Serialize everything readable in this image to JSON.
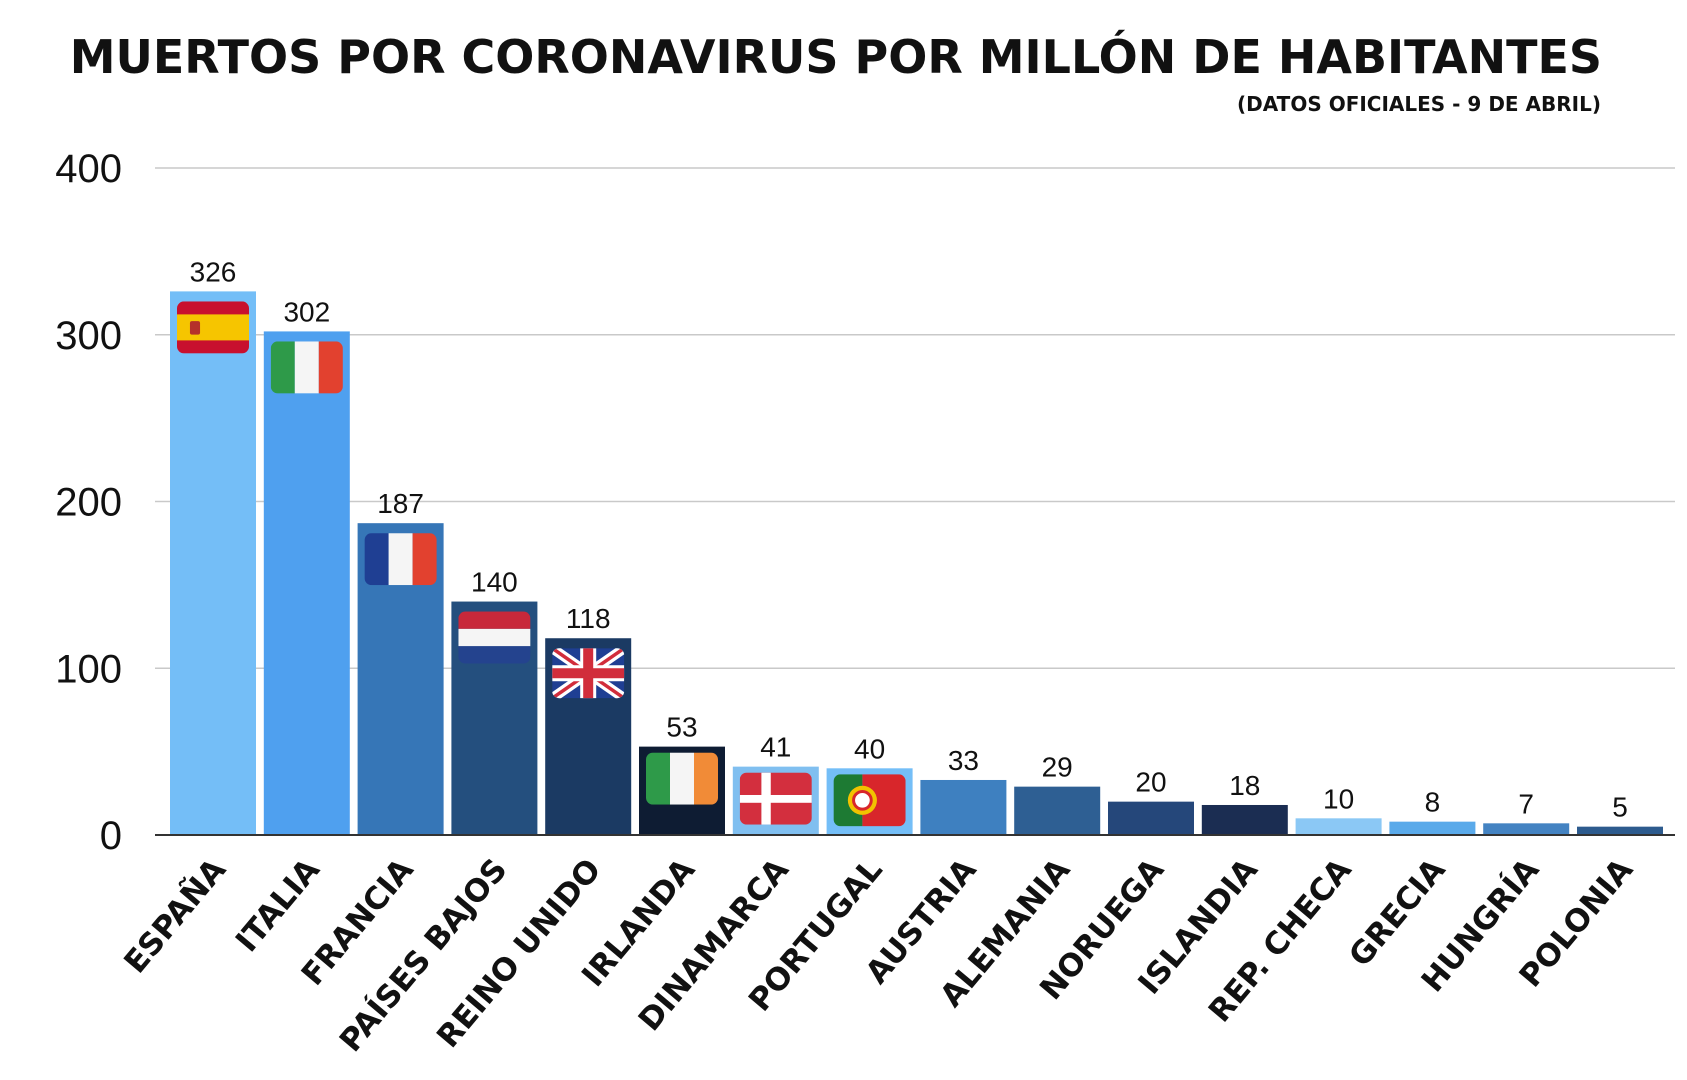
{
  "chart_data": {
    "type": "bar",
    "title": "MUERTOS POR CORONAVIRUS POR MILLÓN DE HABITANTES",
    "subtitle": "(DATOS OFICIALES - 9 DE ABRIL)",
    "xlabel": "",
    "ylabel": "",
    "ylim": [
      0,
      400
    ],
    "yticks": [
      0,
      100,
      200,
      300,
      400
    ],
    "grid": true,
    "legend": "none",
    "categories": [
      "ESPAÑA",
      "ITALIA",
      "FRANCIA",
      "PAÍSES BAJOS",
      "REINO UNIDO",
      "IRLANDA",
      "DINAMARCA",
      "PORTUGAL",
      "AUSTRIA",
      "ALEMANIA",
      "NORUEGA",
      "ISLANDIA",
      "REP. CHECA",
      "GRECIA",
      "HUNGRÍA",
      "POLONIA"
    ],
    "values": [
      326,
      302,
      187,
      140,
      118,
      53,
      41,
      40,
      33,
      29,
      20,
      18,
      10,
      8,
      7,
      5
    ],
    "value_labels": [
      "326",
      "302",
      "187",
      "140",
      "118",
      "53",
      "41",
      "40",
      "33",
      "29",
      "20",
      "18",
      "10",
      "8",
      "7",
      "5"
    ],
    "ytick_labels": [
      "0",
      "100",
      "200",
      "300",
      "400"
    ],
    "colors": [
      "#74bef7",
      "#4fa0ef",
      "#3676b7",
      "#244f7e",
      "#1b3a63",
      "#0e1c33",
      "#80bff0",
      "#74bef7",
      "#3e80c0",
      "#2e5f93",
      "#25477a",
      "#1b2d52",
      "#8bc8f5",
      "#5aaaea",
      "#4483c2",
      "#2d5b8e"
    ],
    "flags": [
      "flag-spain-icon",
      "flag-italy-icon",
      "flag-france-icon",
      "flag-netherlands-icon",
      "flag-uk-icon",
      "flag-ireland-icon",
      "flag-denmark-icon",
      "flag-portugal-icon",
      "",
      "",
      "",
      "",
      "",
      "",
      "",
      ""
    ]
  }
}
